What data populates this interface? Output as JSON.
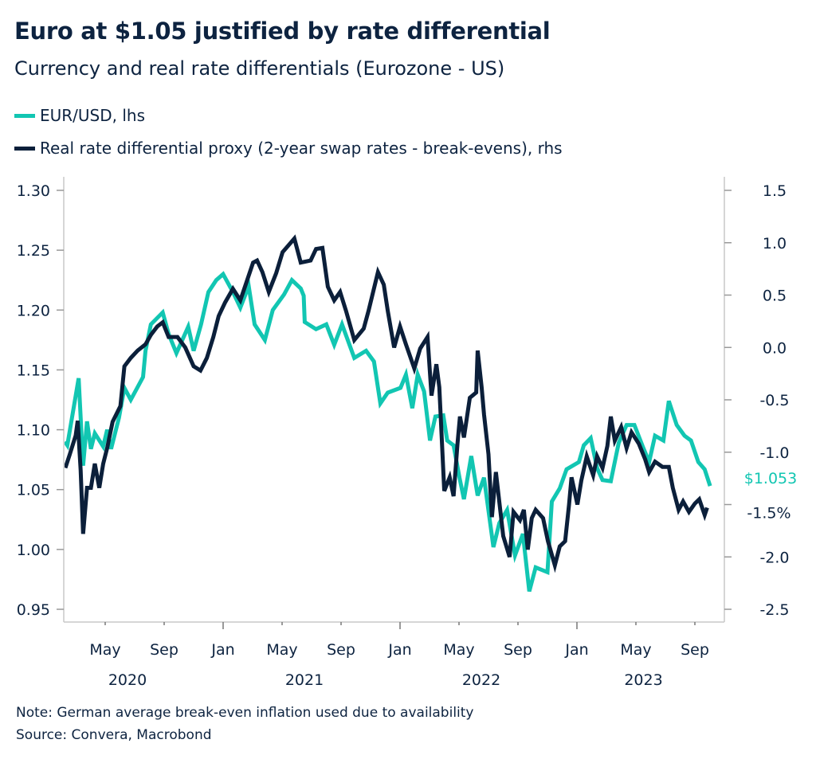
{
  "header": {
    "title": "Euro at $1.05 justified by rate differential",
    "subtitle": "Currency and real rate differentials (Eurozone - US)"
  },
  "footer": {
    "note": "Note: German average break-even inflation used due to availability",
    "source": "Source: Convera, Macrobond"
  },
  "chart_data": {
    "type": "line",
    "title": "Euro at $1.05 justified by rate differential",
    "subtitle": "Currency and real rate differentials (Eurozone - US)",
    "legend_placement": "top-left",
    "grid": false,
    "x_range": [
      "2020-02-05",
      "2023-10-10"
    ],
    "x_ticks": [
      {
        "month": "May",
        "date": "2020-05-01"
      },
      {
        "month": "Sep",
        "date": "2020-09-01"
      },
      {
        "month": "Jan",
        "date": "2021-01-01"
      },
      {
        "month": "May",
        "date": "2021-05-01"
      },
      {
        "month": "Sep",
        "date": "2021-09-01"
      },
      {
        "month": "Jan",
        "date": "2022-01-01"
      },
      {
        "month": "May",
        "date": "2022-05-01"
      },
      {
        "month": "Sep",
        "date": "2022-09-01"
      },
      {
        "month": "Jan",
        "date": "2023-01-01"
      },
      {
        "month": "May",
        "date": "2023-05-01"
      },
      {
        "month": "Sep",
        "date": "2023-09-01"
      }
    ],
    "x_year_labels": [
      {
        "year": "2020",
        "date": "2020-07-01"
      },
      {
        "year": "2021",
        "date": "2021-07-01"
      },
      {
        "year": "2022",
        "date": "2022-07-01"
      },
      {
        "year": "2023",
        "date": "2023-06-01"
      }
    ],
    "y_left": {
      "range": [
        0.95,
        1.3
      ],
      "ticks": [
        "1.30",
        "1.25",
        "1.20",
        "1.15",
        "1.10",
        "1.05",
        "1.00",
        "0.95"
      ]
    },
    "y_right": {
      "range": [
        -2.5,
        1.5
      ],
      "ticks": [
        "1.5",
        "1.0",
        "0.5",
        "0.0",
        "-0.5",
        "-1.0",
        "-2.0",
        "-2.5"
      ],
      "special_tick": {
        "value": -1.5,
        "label": "-1.5%"
      }
    },
    "end_label": {
      "text": "$1.053",
      "value": 1.053
    },
    "series": [
      {
        "name": "EUR/USD, lhs",
        "axis": "left",
        "color": "#12c6b2",
        "points": [
          [
            "2020-02-09",
            1.09
          ],
          [
            "2020-02-14",
            1.087
          ],
          [
            "2020-03-07",
            1.143
          ],
          [
            "2020-03-16",
            1.07
          ],
          [
            "2020-03-24",
            1.107
          ],
          [
            "2020-04-02",
            1.084
          ],
          [
            "2020-04-10",
            1.097
          ],
          [
            "2020-04-27",
            1.086
          ],
          [
            "2020-05-05",
            1.1
          ],
          [
            "2020-05-13",
            1.084
          ],
          [
            "2020-05-29",
            1.11
          ],
          [
            "2020-06-10",
            1.135
          ],
          [
            "2020-06-23",
            1.125
          ],
          [
            "2020-07-18",
            1.144
          ],
          [
            "2020-07-23",
            1.166
          ],
          [
            "2020-08-04",
            1.188
          ],
          [
            "2020-08-28",
            1.198
          ],
          [
            "2020-09-10",
            1.18
          ],
          [
            "2020-09-26",
            1.164
          ],
          [
            "2020-10-20",
            1.186
          ],
          [
            "2020-11-01",
            1.166
          ],
          [
            "2020-11-16",
            1.188
          ],
          [
            "2020-12-01",
            1.215
          ],
          [
            "2020-12-17",
            1.225
          ],
          [
            "2021-01-01",
            1.23
          ],
          [
            "2021-01-21",
            1.215
          ],
          [
            "2021-02-06",
            1.202
          ],
          [
            "2021-02-23",
            1.22
          ],
          [
            "2021-03-05",
            1.188
          ],
          [
            "2021-03-26",
            1.175
          ],
          [
            "2021-04-12",
            1.2
          ],
          [
            "2021-05-05",
            1.213
          ],
          [
            "2021-05-21",
            1.225
          ],
          [
            "2021-06-09",
            1.218
          ],
          [
            "2021-06-15",
            1.212
          ],
          [
            "2021-06-17",
            1.19
          ],
          [
            "2021-07-10",
            1.184
          ],
          [
            "2021-08-01",
            1.188
          ],
          [
            "2021-08-17",
            1.171
          ],
          [
            "2021-09-03",
            1.188
          ],
          [
            "2021-09-28",
            1.16
          ],
          [
            "2021-10-22",
            1.166
          ],
          [
            "2021-11-08",
            1.157
          ],
          [
            "2021-11-21",
            1.122
          ],
          [
            "2021-12-06",
            1.131
          ],
          [
            "2022-01-02",
            1.135
          ],
          [
            "2022-01-13",
            1.146
          ],
          [
            "2022-01-26",
            1.118
          ],
          [
            "2022-02-07",
            1.146
          ],
          [
            "2022-02-20",
            1.132
          ],
          [
            "2022-03-02",
            1.091
          ],
          [
            "2022-03-13",
            1.111
          ],
          [
            "2022-03-29",
            1.112
          ],
          [
            "2022-04-07",
            1.091
          ],
          [
            "2022-04-20",
            1.087
          ],
          [
            "2022-05-02",
            1.06
          ],
          [
            "2022-05-11",
            1.042
          ],
          [
            "2022-05-26",
            1.078
          ],
          [
            "2022-06-09",
            1.045
          ],
          [
            "2022-06-22",
            1.06
          ],
          [
            "2022-07-11",
            1.002
          ],
          [
            "2022-07-23",
            1.022
          ],
          [
            "2022-08-09",
            1.033
          ],
          [
            "2022-08-25",
            0.995
          ],
          [
            "2022-09-11",
            1.013
          ],
          [
            "2022-09-24",
            0.965
          ],
          [
            "2022-10-07",
            0.985
          ],
          [
            "2022-11-01",
            0.981
          ],
          [
            "2022-11-10",
            1.04
          ],
          [
            "2022-11-26",
            1.051
          ],
          [
            "2022-12-10",
            1.067
          ],
          [
            "2023-01-05",
            1.073
          ],
          [
            "2023-01-15",
            1.087
          ],
          [
            "2023-01-29",
            1.093
          ],
          [
            "2023-02-12",
            1.068
          ],
          [
            "2023-02-23",
            1.058
          ],
          [
            "2023-03-10",
            1.057
          ],
          [
            "2023-03-26",
            1.089
          ],
          [
            "2023-04-12",
            1.104
          ],
          [
            "2023-04-28",
            1.104
          ],
          [
            "2023-05-15",
            1.086
          ],
          [
            "2023-05-28",
            1.073
          ],
          [
            "2023-06-10",
            1.095
          ],
          [
            "2023-06-27",
            1.091
          ],
          [
            "2023-07-08",
            1.124
          ],
          [
            "2023-07-24",
            1.104
          ],
          [
            "2023-08-10",
            1.095
          ],
          [
            "2023-08-23",
            1.091
          ],
          [
            "2023-09-08",
            1.073
          ],
          [
            "2023-09-21",
            1.067
          ],
          [
            "2023-10-02",
            1.053
          ]
        ]
      },
      {
        "name": "Real rate differential proxy (2-year swap rates - break-evens), rhs",
        "axis": "right",
        "color": "#0b1f3a",
        "points": [
          [
            "2020-02-10",
            -1.15
          ],
          [
            "2020-02-19",
            -1.02
          ],
          [
            "2020-03-01",
            -0.84
          ],
          [
            "2020-03-05",
            -0.7
          ],
          [
            "2020-03-11",
            -1.17
          ],
          [
            "2020-03-16",
            -1.78
          ],
          [
            "2020-03-24",
            -1.34
          ],
          [
            "2020-04-02",
            -1.34
          ],
          [
            "2020-04-10",
            -1.11
          ],
          [
            "2020-04-19",
            -1.34
          ],
          [
            "2020-04-27",
            -1.11
          ],
          [
            "2020-05-05",
            -0.96
          ],
          [
            "2020-05-16",
            -0.71
          ],
          [
            "2020-06-02",
            -0.56
          ],
          [
            "2020-06-10",
            -0.18
          ],
          [
            "2020-06-23",
            -0.1
          ],
          [
            "2020-07-07",
            -0.03
          ],
          [
            "2020-07-23",
            0.03
          ],
          [
            "2020-08-04",
            0.12
          ],
          [
            "2020-08-17",
            0.2
          ],
          [
            "2020-08-28",
            0.24
          ],
          [
            "2020-09-10",
            0.1
          ],
          [
            "2020-09-28",
            0.1
          ],
          [
            "2020-10-14",
            0.0
          ],
          [
            "2020-11-01",
            -0.18
          ],
          [
            "2020-11-15",
            -0.22
          ],
          [
            "2020-11-28",
            -0.1
          ],
          [
            "2020-12-11",
            0.1
          ],
          [
            "2020-12-22",
            0.3
          ],
          [
            "2021-01-05",
            0.43
          ],
          [
            "2021-01-21",
            0.56
          ],
          [
            "2021-02-06",
            0.45
          ],
          [
            "2021-02-19",
            0.63
          ],
          [
            "2021-03-02",
            0.81
          ],
          [
            "2021-03-10",
            0.83
          ],
          [
            "2021-03-21",
            0.72
          ],
          [
            "2021-04-04",
            0.53
          ],
          [
            "2021-04-19",
            0.71
          ],
          [
            "2021-05-02",
            0.91
          ],
          [
            "2021-05-15",
            0.98
          ],
          [
            "2021-05-26",
            1.04
          ],
          [
            "2021-06-09",
            0.81
          ],
          [
            "2021-06-29",
            0.83
          ],
          [
            "2021-07-10",
            0.94
          ],
          [
            "2021-07-23",
            0.95
          ],
          [
            "2021-08-04",
            0.58
          ],
          [
            "2021-08-17",
            0.45
          ],
          [
            "2021-08-29",
            0.53
          ],
          [
            "2021-09-11",
            0.35
          ],
          [
            "2021-09-28",
            0.07
          ],
          [
            "2021-10-17",
            0.18
          ],
          [
            "2021-10-27",
            0.35
          ],
          [
            "2021-11-16",
            0.72
          ],
          [
            "2021-11-28",
            0.6
          ],
          [
            "2021-12-06",
            0.35
          ],
          [
            "2021-12-19",
            0.0
          ],
          [
            "2022-01-01",
            0.2
          ],
          [
            "2022-01-13",
            0.03
          ],
          [
            "2022-01-30",
            -0.2
          ],
          [
            "2022-02-12",
            -0.01
          ],
          [
            "2022-02-27",
            0.1
          ],
          [
            "2022-03-05",
            -0.46
          ],
          [
            "2022-03-15",
            -0.16
          ],
          [
            "2022-03-21",
            -0.38
          ],
          [
            "2022-04-01",
            -1.37
          ],
          [
            "2022-04-12",
            -1.24
          ],
          [
            "2022-04-20",
            -1.42
          ],
          [
            "2022-04-28",
            -0.92
          ],
          [
            "2022-05-03",
            -0.66
          ],
          [
            "2022-05-11",
            -0.86
          ],
          [
            "2022-05-23",
            -0.48
          ],
          [
            "2022-06-06",
            -0.43
          ],
          [
            "2022-06-09",
            -0.03
          ],
          [
            "2022-06-17",
            -0.38
          ],
          [
            "2022-06-22",
            -0.64
          ],
          [
            "2022-07-01",
            -1.02
          ],
          [
            "2022-07-08",
            -1.62
          ],
          [
            "2022-07-16",
            -1.19
          ],
          [
            "2022-08-01",
            -1.8
          ],
          [
            "2022-08-14",
            -2.0
          ],
          [
            "2022-08-22",
            -1.57
          ],
          [
            "2022-09-05",
            -1.65
          ],
          [
            "2022-09-13",
            -1.55
          ],
          [
            "2022-09-21",
            -1.93
          ],
          [
            "2022-09-29",
            -1.63
          ],
          [
            "2022-10-07",
            -1.55
          ],
          [
            "2022-10-22",
            -1.63
          ],
          [
            "2022-11-02",
            -1.85
          ],
          [
            "2022-11-16",
            -2.08
          ],
          [
            "2022-11-26",
            -1.9
          ],
          [
            "2022-12-07",
            -1.85
          ],
          [
            "2022-12-15",
            -1.5
          ],
          [
            "2022-12-20",
            -1.24
          ],
          [
            "2023-01-02",
            -1.5
          ],
          [
            "2023-01-10",
            -1.27
          ],
          [
            "2023-01-21",
            -1.04
          ],
          [
            "2023-02-04",
            -1.22
          ],
          [
            "2023-02-12",
            -1.04
          ],
          [
            "2023-02-23",
            -1.15
          ],
          [
            "2023-03-03",
            -0.94
          ],
          [
            "2023-03-10",
            -0.66
          ],
          [
            "2023-03-18",
            -0.89
          ],
          [
            "2023-04-01",
            -0.76
          ],
          [
            "2023-04-12",
            -0.96
          ],
          [
            "2023-04-22",
            -0.81
          ],
          [
            "2023-05-07",
            -0.92
          ],
          [
            "2023-05-20",
            -1.07
          ],
          [
            "2023-05-28",
            -1.19
          ],
          [
            "2023-06-10",
            -1.09
          ],
          [
            "2023-06-25",
            -1.14
          ],
          [
            "2023-07-08",
            -1.14
          ],
          [
            "2023-07-16",
            -1.34
          ],
          [
            "2023-07-28",
            -1.55
          ],
          [
            "2023-08-07",
            -1.47
          ],
          [
            "2023-08-19",
            -1.57
          ],
          [
            "2023-09-01",
            -1.49
          ],
          [
            "2023-09-10",
            -1.45
          ],
          [
            "2023-09-21",
            -1.6
          ],
          [
            "2023-09-26",
            -1.53
          ]
        ]
      }
    ]
  }
}
